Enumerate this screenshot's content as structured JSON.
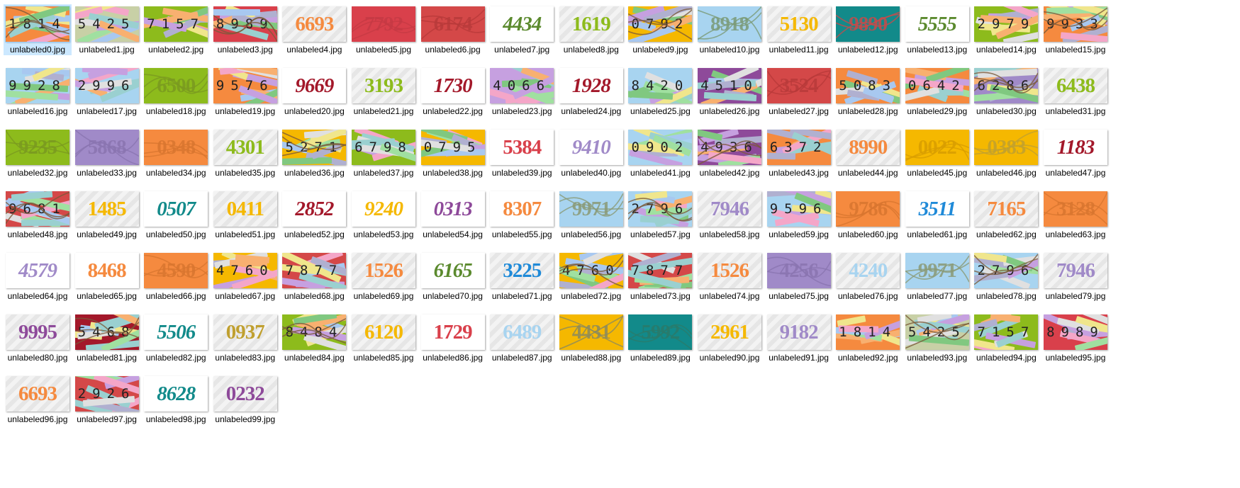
{
  "files": [
    {
      "name": "unlabeled0.jpg",
      "code": "1814",
      "bg": "#f58a3f",
      "style": "mono",
      "color": "#222222",
      "selected": true
    },
    {
      "name": "unlabeled1.jpg",
      "code": "5425",
      "bg": "#c8d0a6",
      "style": "mono",
      "color": "#222222"
    },
    {
      "name": "unlabeled2.jpg",
      "code": "7157",
      "bg": "#8dbb1c",
      "style": "mono",
      "color": "#222222"
    },
    {
      "name": "unlabeled3.jpg",
      "code": "8989",
      "bg": "#d9404b",
      "style": "mono",
      "color": "#222222"
    },
    {
      "name": "unlabeled4.jpg",
      "code": "6693",
      "bg": "striped",
      "style": "serif",
      "color": "#f58a3f"
    },
    {
      "name": "unlabeled5.jpg",
      "code": "7792",
      "bg": "#d9404b",
      "style": "wavy",
      "color": "#c63a44"
    },
    {
      "name": "unlabeled6.jpg",
      "code": "6174",
      "bg": "#d44848",
      "style": "wavy",
      "color": "#b83a3a"
    },
    {
      "name": "unlabeled7.jpg",
      "code": "4434",
      "bg": "white",
      "style": "italic",
      "color": "#5b8a2e"
    },
    {
      "name": "unlabeled8.jpg",
      "code": "1619",
      "bg": "striped",
      "style": "serif",
      "color": "#8dbb1c"
    },
    {
      "name": "unlabeled9.jpg",
      "code": "0792",
      "bg": "#f5b800",
      "style": "mono",
      "color": "#222222"
    },
    {
      "name": "unlabeled10.jpg",
      "code": "8918",
      "bg": "#a8d4f0",
      "style": "wavy",
      "color": "#7a9a76"
    },
    {
      "name": "unlabeled11.jpg",
      "code": "5130",
      "bg": "striped",
      "style": "serif",
      "color": "#f5b800"
    },
    {
      "name": "unlabeled12.jpg",
      "code": "9890",
      "bg": "#128a8a",
      "style": "wavy",
      "color": "#c94a4a"
    },
    {
      "name": "unlabeled13.jpg",
      "code": "5555",
      "bg": "white",
      "style": "italic",
      "color": "#5b8a2e"
    },
    {
      "name": "unlabeled14.jpg",
      "code": "2979",
      "bg": "#8dbb1c",
      "style": "mono",
      "color": "#222222"
    },
    {
      "name": "unlabeled15.jpg",
      "code": "9933",
      "bg": "#f58a3f",
      "style": "mono",
      "color": "#222222"
    },
    {
      "name": "unlabeled16.jpg",
      "code": "9928",
      "bg": "#a8d4f0",
      "style": "mono",
      "color": "#222222"
    },
    {
      "name": "unlabeled17.jpg",
      "code": "2996",
      "bg": "#a8d4f0",
      "style": "mono",
      "color": "#222222"
    },
    {
      "name": "unlabeled18.jpg",
      "code": "6500",
      "bg": "#8dbb1c",
      "style": "wavy",
      "color": "#7a9a20"
    },
    {
      "name": "unlabeled19.jpg",
      "code": "9576",
      "bg": "#f58a3f",
      "style": "mono",
      "color": "#222222"
    },
    {
      "name": "unlabeled20.jpg",
      "code": "9669",
      "bg": "white",
      "style": "italic",
      "color": "#a3182a"
    },
    {
      "name": "unlabeled21.jpg",
      "code": "3193",
      "bg": "striped",
      "style": "serif",
      "color": "#8dbb1c"
    },
    {
      "name": "unlabeled22.jpg",
      "code": "1730",
      "bg": "white",
      "style": "italic",
      "color": "#a3182a"
    },
    {
      "name": "unlabeled23.jpg",
      "code": "4066",
      "bg": "#c6a0e0",
      "style": "mono",
      "color": "#222222"
    },
    {
      "name": "unlabeled24.jpg",
      "code": "1928",
      "bg": "white",
      "style": "italic",
      "color": "#a3182a"
    },
    {
      "name": "unlabeled25.jpg",
      "code": "8420",
      "bg": "#a8d4f0",
      "style": "mono",
      "color": "#222222"
    },
    {
      "name": "unlabeled26.jpg",
      "code": "4510",
      "bg": "#8e4a9a",
      "style": "mono",
      "color": "#222222"
    },
    {
      "name": "unlabeled27.jpg",
      "code": "3524",
      "bg": "#d44848",
      "style": "wavy",
      "color": "#b83a3a"
    },
    {
      "name": "unlabeled28.jpg",
      "code": "5083",
      "bg": "#f58a3f",
      "style": "mono",
      "color": "#222222"
    },
    {
      "name": "unlabeled29.jpg",
      "code": "0642",
      "bg": "#f58a3f",
      "style": "mono",
      "color": "#222222"
    },
    {
      "name": "unlabeled30.jpg",
      "code": "6286",
      "bg": "#a08ac8",
      "style": "mono",
      "color": "#222222"
    },
    {
      "name": "unlabeled31.jpg",
      "code": "6438",
      "bg": "striped",
      "style": "serif",
      "color": "#8dbb1c"
    },
    {
      "name": "unlabeled32.jpg",
      "code": "9235",
      "bg": "#8dbb1c",
      "style": "wavy",
      "color": "#7a9a20"
    },
    {
      "name": "unlabeled33.jpg",
      "code": "5868",
      "bg": "#a08ac8",
      "style": "wavy",
      "color": "#8a74b0"
    },
    {
      "name": "unlabeled34.jpg",
      "code": "0348",
      "bg": "#f58a3f",
      "style": "wavy",
      "color": "#d8762f"
    },
    {
      "name": "unlabeled35.jpg",
      "code": "4301",
      "bg": "striped",
      "style": "serif",
      "color": "#8dbb1c"
    },
    {
      "name": "unlabeled36.jpg",
      "code": "5271",
      "bg": "#f5b800",
      "style": "mono",
      "color": "#222222"
    },
    {
      "name": "unlabeled37.jpg",
      "code": "6798",
      "bg": "#8dbb1c",
      "style": "mono",
      "color": "#222222"
    },
    {
      "name": "unlabeled38.jpg",
      "code": "0795",
      "bg": "#f5b800",
      "style": "mono",
      "color": "#222222"
    },
    {
      "name": "unlabeled39.jpg",
      "code": "5384",
      "bg": "white",
      "style": "serif",
      "color": "#d9404b"
    },
    {
      "name": "unlabeled40.jpg",
      "code": "9410",
      "bg": "white",
      "style": "italic",
      "color": "#a08ac8"
    },
    {
      "name": "unlabeled41.jpg",
      "code": "0902",
      "bg": "#a8d4f0",
      "style": "mono",
      "color": "#222222"
    },
    {
      "name": "unlabeled42.jpg",
      "code": "4936",
      "bg": "#8e4a9a",
      "style": "mono",
      "color": "#222222"
    },
    {
      "name": "unlabeled43.jpg",
      "code": "6372",
      "bg": "#f58a3f",
      "style": "mono",
      "color": "#222222"
    },
    {
      "name": "unlabeled44.jpg",
      "code": "8990",
      "bg": "striped",
      "style": "serif",
      "color": "#f58a3f"
    },
    {
      "name": "unlabeled45.jpg",
      "code": "0022",
      "bg": "#f5b800",
      "style": "wavy",
      "color": "#d89e00"
    },
    {
      "name": "unlabeled46.jpg",
      "code": "0383",
      "bg": "#f5b800",
      "style": "wavy",
      "color": "#c0a030"
    },
    {
      "name": "unlabeled47.jpg",
      "code": "1183",
      "bg": "white",
      "style": "italic",
      "color": "#a3182a"
    },
    {
      "name": "unlabeled48.jpg",
      "code": "9681",
      "bg": "#d44848",
      "style": "mono",
      "color": "#222222"
    },
    {
      "name": "unlabeled49.jpg",
      "code": "1485",
      "bg": "striped",
      "style": "serif",
      "color": "#f5b800"
    },
    {
      "name": "unlabeled50.jpg",
      "code": "0507",
      "bg": "white",
      "style": "italic",
      "color": "#128a8a"
    },
    {
      "name": "unlabeled51.jpg",
      "code": "0411",
      "bg": "striped",
      "style": "serif",
      "color": "#f5b800"
    },
    {
      "name": "unlabeled52.jpg",
      "code": "2852",
      "bg": "white",
      "style": "italic",
      "color": "#a3182a"
    },
    {
      "name": "unlabeled53.jpg",
      "code": "9240",
      "bg": "white",
      "style": "italic",
      "color": "#f5b800"
    },
    {
      "name": "unlabeled54.jpg",
      "code": "0313",
      "bg": "white",
      "style": "italic",
      "color": "#8e4a9a"
    },
    {
      "name": "unlabeled55.jpg",
      "code": "8307",
      "bg": "white",
      "style": "serif",
      "color": "#f58a3f"
    },
    {
      "name": "unlabeled56.jpg",
      "code": "9971",
      "bg": "#a8d4f0",
      "style": "wavy",
      "color": "#8a9a76"
    },
    {
      "name": "unlabeled57.jpg",
      "code": "2796",
      "bg": "#a8d4f0",
      "style": "mono",
      "color": "#222222"
    },
    {
      "name": "unlabeled58.jpg",
      "code": "7946",
      "bg": "striped",
      "style": "serif",
      "color": "#a08ac8"
    },
    {
      "name": "unlabeled59.jpg",
      "code": "9596",
      "bg": "#a8d4f0",
      "style": "mono",
      "color": "#222222"
    },
    {
      "name": "unlabeled60.jpg",
      "code": "9786",
      "bg": "#f58a3f",
      "style": "wavy",
      "color": "#d8762f"
    },
    {
      "name": "unlabeled61.jpg",
      "code": "3511",
      "bg": "white",
      "style": "italic",
      "color": "#1f8ad8"
    },
    {
      "name": "unlabeled62.jpg",
      "code": "7165",
      "bg": "striped",
      "style": "serif",
      "color": "#f58a3f"
    },
    {
      "name": "unlabeled63.jpg",
      "code": "3128",
      "bg": "#f58a3f",
      "style": "wavy",
      "color": "#d8762f"
    },
    {
      "name": "unlabeled64.jpg",
      "code": "4579",
      "bg": "white",
      "style": "italic",
      "color": "#a08ac8"
    },
    {
      "name": "unlabeled65.jpg",
      "code": "8468",
      "bg": "white",
      "style": "serif",
      "color": "#f58a3f"
    },
    {
      "name": "unlabeled66.jpg",
      "code": "4590",
      "bg": "#f58a3f",
      "style": "wavy",
      "color": "#d8762f"
    },
    {
      "name": "unlabeled67.jpg",
      "code": "4760",
      "bg": "#f5b800",
      "style": "mono",
      "color": "#222222"
    },
    {
      "name": "unlabeled68.jpg",
      "code": "7877",
      "bg": "#d44848",
      "style": "mono",
      "color": "#222222"
    },
    {
      "name": "unlabeled69.jpg",
      "code": "1526",
      "bg": "striped",
      "style": "serif",
      "color": "#f58a3f"
    },
    {
      "name": "unlabeled70.jpg",
      "code": "6165",
      "bg": "white",
      "style": "italic",
      "color": "#5b8a2e"
    },
    {
      "name": "unlabeled71.jpg",
      "code": "3225",
      "bg": "striped",
      "style": "serif",
      "color": "#1f8ad8"
    },
    {
      "name": "unlabeled72.jpg",
      "code": "4760",
      "bg": "#f5b800",
      "style": "mono",
      "color": "#222222"
    },
    {
      "name": "unlabeled73.jpg",
      "code": "7877",
      "bg": "#d44848",
      "style": "mono",
      "color": "#222222"
    },
    {
      "name": "unlabeled74.jpg",
      "code": "1526",
      "bg": "striped",
      "style": "serif",
      "color": "#f58a3f"
    },
    {
      "name": "unlabeled75.jpg",
      "code": "4256",
      "bg": "#a08ac8",
      "style": "wavy",
      "color": "#8a74b0"
    },
    {
      "name": "unlabeled76.jpg",
      "code": "4240",
      "bg": "striped",
      "style": "serif",
      "color": "#a8d4f0"
    },
    {
      "name": "unlabeled77.jpg",
      "code": "9971",
      "bg": "#a8d4f0",
      "style": "wavy",
      "color": "#8a9a76"
    },
    {
      "name": "unlabeled78.jpg",
      "code": "2796",
      "bg": "#a8d4f0",
      "style": "mono",
      "color": "#222222"
    },
    {
      "name": "unlabeled79.jpg",
      "code": "7946",
      "bg": "striped",
      "style": "serif",
      "color": "#a08ac8"
    },
    {
      "name": "unlabeled80.jpg",
      "code": "9995",
      "bg": "striped",
      "style": "serif",
      "color": "#8e4a9a"
    },
    {
      "name": "unlabeled81.jpg",
      "code": "5468",
      "bg": "#a3182a",
      "style": "mono",
      "color": "#222222"
    },
    {
      "name": "unlabeled82.jpg",
      "code": "5506",
      "bg": "white",
      "style": "italic",
      "color": "#128a8a"
    },
    {
      "name": "unlabeled83.jpg",
      "code": "0937",
      "bg": "striped",
      "style": "serif",
      "color": "#c0a030"
    },
    {
      "name": "unlabeled84.jpg",
      "code": "8484",
      "bg": "#8dbb1c",
      "style": "mono",
      "color": "#222222"
    },
    {
      "name": "unlabeled85.jpg",
      "code": "6120",
      "bg": "striped",
      "style": "serif",
      "color": "#f5b800"
    },
    {
      "name": "unlabeled86.jpg",
      "code": "1729",
      "bg": "white",
      "style": "serif",
      "color": "#d9404b"
    },
    {
      "name": "unlabeled87.jpg",
      "code": "6489",
      "bg": "striped",
      "style": "serif",
      "color": "#a8d4f0"
    },
    {
      "name": "unlabeled88.jpg",
      "code": "4431",
      "bg": "#f5b800",
      "style": "wavy",
      "color": "#8a8a60"
    },
    {
      "name": "unlabeled89.jpg",
      "code": "5992",
      "bg": "#128a8a",
      "style": "wavy",
      "color": "#2a7a6a"
    },
    {
      "name": "unlabeled90.jpg",
      "code": "2961",
      "bg": "striped",
      "style": "serif",
      "color": "#f5b800"
    },
    {
      "name": "unlabeled91.jpg",
      "code": "9182",
      "bg": "striped",
      "style": "serif",
      "color": "#a08ac8"
    },
    {
      "name": "unlabeled92.jpg",
      "code": "1814",
      "bg": "#f58a3f",
      "style": "mono",
      "color": "#222222"
    },
    {
      "name": "unlabeled93.jpg",
      "code": "5425",
      "bg": "#c8d0a6",
      "style": "mono",
      "color": "#222222"
    },
    {
      "name": "unlabeled94.jpg",
      "code": "7157",
      "bg": "#8dbb1c",
      "style": "mono",
      "color": "#222222"
    },
    {
      "name": "unlabeled95.jpg",
      "code": "8989",
      "bg": "#d9404b",
      "style": "mono",
      "color": "#222222"
    },
    {
      "name": "unlabeled96.jpg",
      "code": "6693",
      "bg": "striped",
      "style": "serif",
      "color": "#f58a3f"
    },
    {
      "name": "unlabeled97.jpg",
      "code": "2926",
      "bg": "#d44848",
      "style": "mono",
      "color": "#222222"
    },
    {
      "name": "unlabeled98.jpg",
      "code": "8628",
      "bg": "white",
      "style": "italic",
      "color": "#128a8a"
    },
    {
      "name": "unlabeled99.jpg",
      "code": "0232",
      "bg": "striped",
      "style": "serif",
      "color": "#8e4a9a"
    }
  ]
}
